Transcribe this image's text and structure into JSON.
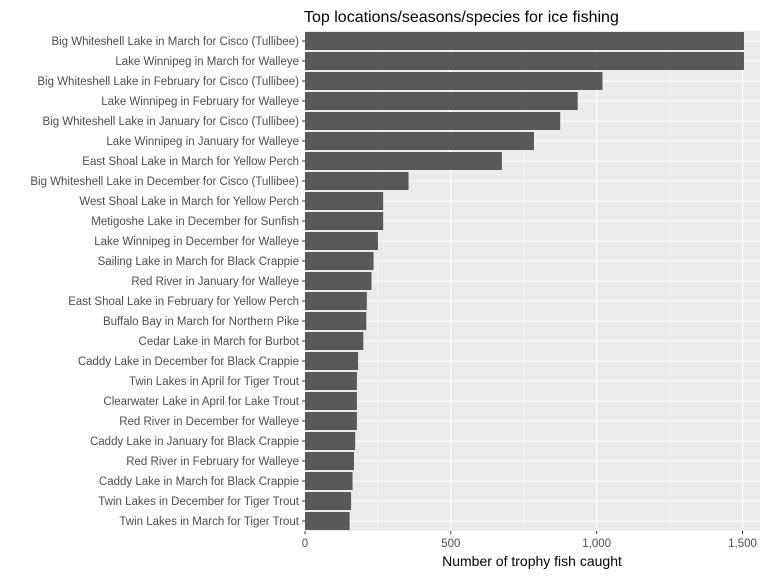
{
  "chart_data": {
    "type": "bar",
    "orientation": "horizontal",
    "title": "Top locations/seasons/species for ice fishing",
    "xlabel": "Number of trophy fish caught",
    "ylabel": "",
    "xlim": [
      0,
      1560
    ],
    "x_ticks": [
      0,
      500,
      1000,
      1500
    ],
    "x_tick_labels": [
      "0",
      "500",
      "1,000",
      "1,500"
    ],
    "grid": true,
    "legend": "none",
    "categories": [
      "Big Whiteshell Lake in March for Cisco (Tullibee)",
      "Lake Winnipeg in March for Walleye",
      "Big Whiteshell Lake in February for Cisco (Tullibee)",
      "Lake Winnipeg in February for Walleye",
      "Big Whiteshell Lake in January for Cisco (Tullibee)",
      "Lake Winnipeg in January for Walleye",
      "East Shoal Lake in March for Yellow Perch",
      "Big Whiteshell Lake in December for Cisco (Tullibee)",
      "West Shoal Lake in March for Yellow Perch",
      "Metigoshe Lake in December for Sunfish",
      "Lake Winnipeg in December for Walleye",
      "Sailing Lake in March for Black Crappie",
      "Red River in January for Walleye",
      "East Shoal Lake in February for Yellow Perch",
      "Buffalo Bay in March for Northern Pike",
      "Cedar Lake in March for Burbot",
      "Caddy Lake in December for Black Crappie",
      "Twin Lakes in April for Tiger Trout",
      "Clearwater Lake in April for Lake Trout",
      "Red River in December for Walleye",
      "Caddy Lake in January for Black Crappie",
      "Red River in February for Walleye",
      "Caddy Lake in March for Black Crappie",
      "Twin Lakes in December for Tiger Trout",
      "Twin Lakes in March for Tiger Trout"
    ],
    "values": [
      1505,
      1505,
      1020,
      935,
      875,
      785,
      675,
      355,
      268,
      268,
      250,
      235,
      228,
      212,
      210,
      200,
      182,
      178,
      178,
      178,
      172,
      168,
      163,
      158,
      153
    ],
    "colors": {
      "bar": "#595959",
      "panel": "#ebebeb",
      "grid_major": "#ffffff",
      "grid_minor": "#f5f5f5",
      "tick": "#333333",
      "tick_label": "#4d4d4d",
      "text": "#000000"
    }
  }
}
